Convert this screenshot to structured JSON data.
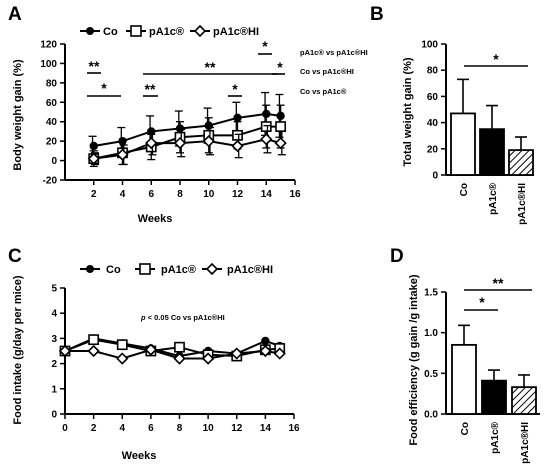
{
  "colors": {
    "ink": "#000000",
    "bg": "#ffffff"
  },
  "chart_data": [
    {
      "panel": "A",
      "type": "line",
      "xlabel": "Weeks",
      "ylabel": "Body weight gain (%)",
      "xlim": [
        0,
        16
      ],
      "ylim": [
        -20,
        120
      ],
      "xticks": [
        2,
        4,
        6,
        8,
        10,
        12,
        14,
        16
      ],
      "yticks": [
        -20,
        0,
        20,
        40,
        60,
        80,
        100,
        120
      ],
      "legend_position": "top",
      "series": [
        {
          "name": "Co",
          "marker": "circle-filled",
          "x": [
            2,
            4,
            6,
            8,
            10,
            12,
            14,
            15
          ],
          "y": [
            15,
            20,
            30,
            33,
            36,
            44,
            48,
            46
          ],
          "err": [
            10,
            14,
            16,
            18,
            18,
            16,
            22,
            22
          ]
        },
        {
          "name": "pA1c®",
          "marker": "square-open",
          "x": [
            2,
            4,
            6,
            8,
            10,
            12,
            14,
            15
          ],
          "y": [
            2,
            8,
            14,
            24,
            26,
            26,
            35,
            35
          ],
          "err": [
            8,
            12,
            13,
            16,
            18,
            14,
            22,
            22
          ]
        },
        {
          "name": "pA1c®HI",
          "marker": "diamond-open",
          "x": [
            2,
            4,
            6,
            8,
            10,
            12,
            14,
            15
          ],
          "y": [
            2,
            6,
            18,
            18,
            20,
            15,
            22,
            18
          ],
          "err": [
            6,
            10,
            12,
            14,
            14,
            12,
            14,
            12
          ]
        }
      ],
      "annotations": [
        "**",
        "*",
        "**",
        "**",
        "*",
        "*",
        "*"
      ],
      "notes": [
        "pA1c® vs pA1c®HI",
        "Co vs pA1c®HI",
        "Co vs pA1c®"
      ]
    },
    {
      "panel": "B",
      "type": "bar",
      "ylabel": "Total weight gain (%)",
      "ylim": [
        0,
        100
      ],
      "yticks": [
        0,
        20,
        40,
        60,
        80,
        100
      ],
      "categories": [
        "Co",
        "pA1c®",
        "pA1c®HI"
      ],
      "values": [
        47,
        35,
        19
      ],
      "err": [
        26,
        18,
        10
      ],
      "fills": [
        "white",
        "black",
        "hatched"
      ],
      "annotations": [
        "*"
      ]
    },
    {
      "panel": "C",
      "type": "line",
      "xlabel": "Weeks",
      "ylabel": "Food intake (g/day per mice)",
      "xlim": [
        0,
        16
      ],
      "ylim": [
        0,
        5
      ],
      "xticks": [
        0,
        2,
        4,
        6,
        8,
        10,
        12,
        14,
        16
      ],
      "yticks": [
        0,
        1,
        2,
        3,
        4,
        5
      ],
      "legend_position": "top",
      "series": [
        {
          "name": "Co",
          "marker": "circle-filled",
          "x": [
            0,
            2,
            4,
            6,
            8,
            10,
            12,
            14,
            15
          ],
          "y": [
            2.5,
            3.0,
            2.8,
            2.6,
            2.3,
            2.5,
            2.4,
            2.9,
            2.7
          ]
        },
        {
          "name": "pA1c®",
          "marker": "square-open",
          "x": [
            0,
            2,
            4,
            6,
            8,
            10,
            12,
            14,
            15
          ],
          "y": [
            2.5,
            2.95,
            2.75,
            2.5,
            2.65,
            2.35,
            2.3,
            2.55,
            2.6
          ]
        },
        {
          "name": "pA1c®HI",
          "marker": "diamond-open",
          "x": [
            0,
            2,
            4,
            6,
            8,
            10,
            12,
            14,
            15
          ],
          "y": [
            2.5,
            2.5,
            2.2,
            2.55,
            2.2,
            2.2,
            2.4,
            2.5,
            2.4
          ]
        }
      ],
      "note_p": "p",
      "note_rest": " < 0.05 Co vs pA1c®HI"
    },
    {
      "panel": "D",
      "type": "bar",
      "ylabel": "Food efficiency (g gain /g intake)",
      "ylim": [
        0,
        1.5
      ],
      "yticks": [
        "0.0",
        "0.5",
        "1.0",
        "1.5"
      ],
      "categories": [
        "Co",
        "pA1c®",
        "pA1c®HI"
      ],
      "values": [
        0.85,
        0.41,
        0.33
      ],
      "err": [
        0.24,
        0.13,
        0.15
      ],
      "fills": [
        "white",
        "black",
        "hatched"
      ],
      "annotations": [
        "*",
        "**"
      ]
    }
  ]
}
